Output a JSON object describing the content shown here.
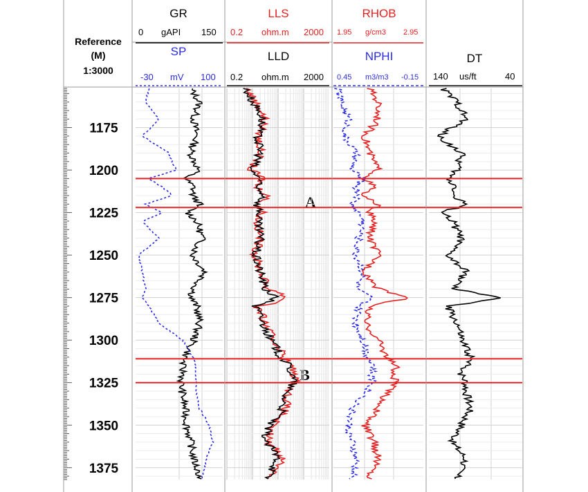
{
  "reference": {
    "label": "Reference",
    "unit": "(M)",
    "scale": "1:3000"
  },
  "tracks": {
    "gr": {
      "name": "GR",
      "unit": "gAPI",
      "min": "0",
      "max": "150",
      "color": "#000000"
    },
    "sp": {
      "name": "SP",
      "unit": "mV",
      "min": "-30",
      "max": "100",
      "color": "#2a2ae6"
    },
    "lls": {
      "name": "LLS",
      "unit": "ohm.m",
      "min": "0.2",
      "max": "2000",
      "color": "#e62020"
    },
    "lld": {
      "name": "LLD",
      "unit": "ohm.m",
      "min": "0.2",
      "max": "2000",
      "color": "#000000"
    },
    "rhob": {
      "name": "RHOB",
      "unit": "g/cm3",
      "min": "1.95",
      "max": "2.95",
      "color": "#e62020"
    },
    "nphi": {
      "name": "NPHI",
      "unit": "m3/m3",
      "min": "0.45",
      "max": "-0.15",
      "color": "#2a2ae6"
    },
    "dt": {
      "name": "DT",
      "unit": "us/ft",
      "min": "140",
      "max": "40",
      "color": "#000000"
    }
  },
  "zones": [
    {
      "label": "A",
      "top": 1205,
      "bottom": 1222
    },
    {
      "label": "B",
      "top": 1311,
      "bottom": 1325
    }
  ],
  "chart_data": {
    "type": "line",
    "depth_axis": {
      "unit": "M",
      "range": [
        1152,
        1382
      ],
      "ticks": [
        1175,
        1200,
        1225,
        1250,
        1275,
        1300,
        1325,
        1350,
        1375
      ]
    },
    "depth_samples": [
      1152,
      1160,
      1170,
      1180,
      1190,
      1200,
      1205,
      1210,
      1215,
      1220,
      1225,
      1230,
      1240,
      1250,
      1260,
      1270,
      1275,
      1280,
      1290,
      1300,
      1310,
      1315,
      1320,
      1325,
      1330,
      1340,
      1350,
      1360,
      1370,
      1380
    ],
    "series": [
      {
        "name": "GR",
        "unit": "gAPI",
        "scale": [
          0,
          150
        ],
        "log": false,
        "values": [
          95,
          110,
          100,
          105,
          95,
          108,
          85,
          100,
          98,
          110,
          90,
          105,
          115,
          98,
          120,
          100,
          95,
          105,
          110,
          100,
          85,
          80,
          82,
          78,
          80,
          85,
          88,
          95,
          100,
          110
        ]
      },
      {
        "name": "SP",
        "unit": "mV",
        "scale": [
          -30,
          100
        ],
        "log": false,
        "values": [
          -10,
          -15,
          5,
          -20,
          20,
          30,
          -10,
          10,
          25,
          -15,
          10,
          -20,
          5,
          -25,
          -20,
          -15,
          -20,
          -10,
          5,
          40,
          55,
          60,
          60,
          60,
          60,
          65,
          80,
          85,
          75,
          70
        ]
      },
      {
        "name": "LLS",
        "unit": "ohm.m",
        "scale": [
          0.2,
          2000
        ],
        "log": true,
        "values": [
          1.2,
          2.5,
          6,
          3.5,
          4,
          1.5,
          5,
          2.5,
          8,
          3.5,
          5,
          3,
          4,
          2.5,
          4,
          8,
          40,
          3,
          6,
          12,
          35,
          60,
          90,
          95,
          50,
          40,
          10,
          8,
          30,
          10
        ]
      },
      {
        "name": "LLD",
        "unit": "ohm.m",
        "scale": [
          0.2,
          2000
        ],
        "log": true,
        "values": [
          1.0,
          2.0,
          5,
          3.0,
          4,
          1.5,
          4,
          2.5,
          6,
          3.0,
          4,
          3,
          4,
          2.5,
          4,
          6,
          15,
          2.5,
          5,
          10,
          25,
          50,
          70,
          80,
          40,
          30,
          8,
          6,
          20,
          8
        ]
      },
      {
        "name": "RHOB",
        "unit": "g/cm3",
        "scale": [
          1.95,
          2.95
        ],
        "log": false,
        "values": [
          2.35,
          2.45,
          2.45,
          2.3,
          2.35,
          2.45,
          2.3,
          2.4,
          2.25,
          2.45,
          2.35,
          2.4,
          2.35,
          2.45,
          2.3,
          2.45,
          2.8,
          2.35,
          2.3,
          2.45,
          2.55,
          2.65,
          2.6,
          2.65,
          2.55,
          2.45,
          2.3,
          2.4,
          2.45,
          2.35
        ]
      },
      {
        "name": "NPHI",
        "unit": "m3/m3",
        "scale": [
          0.45,
          -0.15
        ],
        "log": false,
        "values": [
          0.42,
          0.4,
          0.35,
          0.38,
          0.3,
          0.33,
          0.25,
          0.3,
          0.28,
          0.33,
          0.28,
          0.25,
          0.28,
          0.3,
          0.25,
          0.3,
          0.2,
          0.28,
          0.3,
          0.25,
          0.22,
          0.18,
          0.2,
          0.18,
          0.22,
          0.32,
          0.35,
          0.33,
          0.3,
          0.32
        ]
      },
      {
        "name": "DT",
        "unit": "us/ft",
        "scale": [
          140,
          40
        ],
        "log": false,
        "values": [
          125,
          110,
          100,
          130,
          105,
          110,
          120,
          110,
          115,
          100,
          125,
          115,
          105,
          120,
          100,
          115,
          60,
          120,
          110,
          105,
          95,
          100,
          105,
          100,
          100,
          95,
          105,
          115,
          100,
          110
        ]
      }
    ],
    "grid": true
  }
}
